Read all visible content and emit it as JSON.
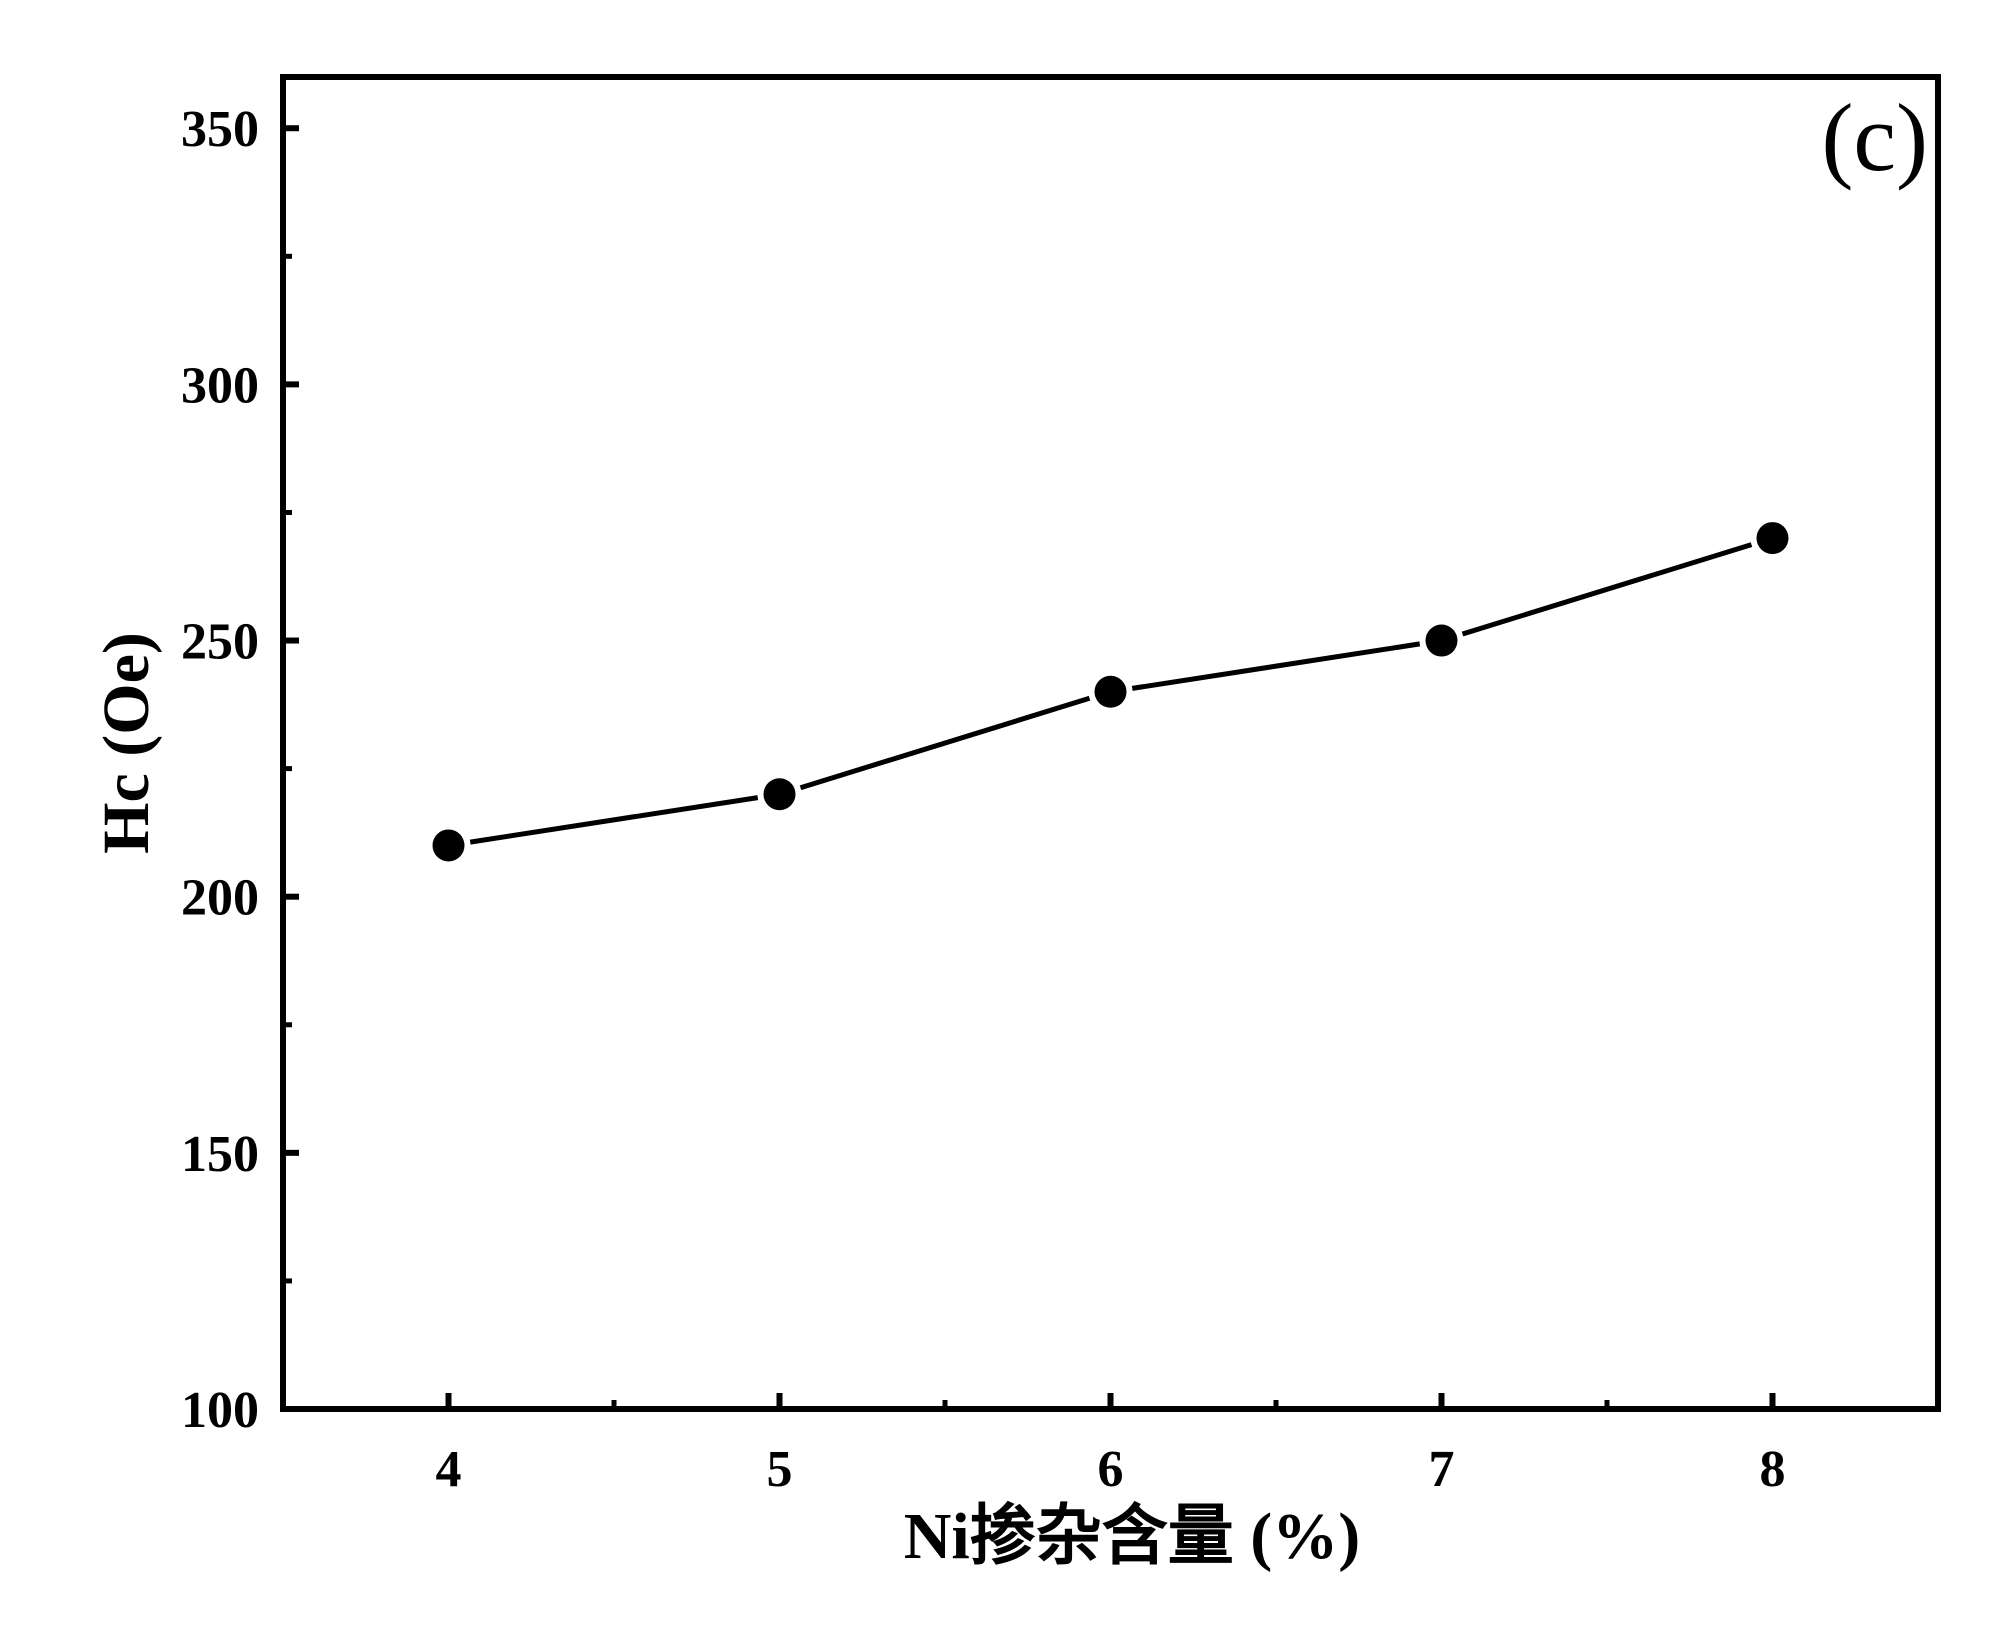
{
  "chart_data": {
    "type": "line",
    "title": "",
    "panel_label": "(c)",
    "xlabel": "Ni掺杂含量 (%)",
    "ylabel": "Hc (Oe)",
    "x": [
      4,
      5,
      6,
      7,
      8
    ],
    "series": [
      {
        "values": [
          210,
          220,
          240,
          250,
          270
        ]
      }
    ],
    "xlim": [
      3.5,
      8.5
    ],
    "ylim": [
      100,
      360
    ],
    "xticks": [
      "4",
      "5",
      "6",
      "7",
      "8"
    ],
    "yticks": [
      "100",
      "150",
      "200",
      "250",
      "300",
      "350"
    ],
    "grid": false,
    "legend": "none",
    "marker": "filled-circle",
    "colors": {
      "line": "#000000",
      "marker": "#000000",
      "frame": "#000000"
    }
  }
}
